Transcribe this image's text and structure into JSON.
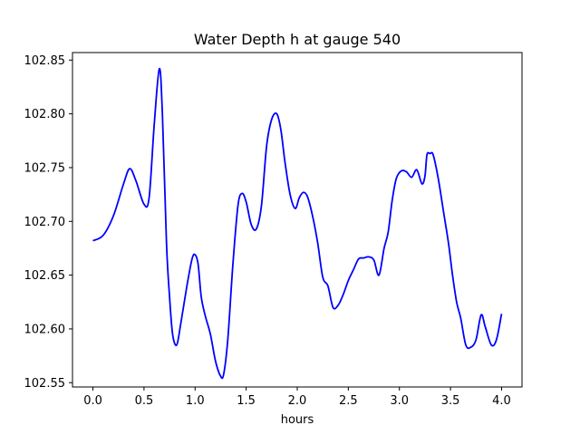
{
  "chart_data": {
    "type": "line",
    "title": "Water Depth h at gauge 540",
    "xlabel": "hours",
    "ylabel": "",
    "xlim": [
      -0.2,
      4.2
    ],
    "ylim": [
      102.546,
      102.857
    ],
    "xticks": [
      0.0,
      0.5,
      1.0,
      1.5,
      2.0,
      2.5,
      3.0,
      3.5,
      4.0
    ],
    "xtick_labels": [
      "0.0",
      "0.5",
      "1.0",
      "1.5",
      "2.0",
      "2.5",
      "3.0",
      "3.5",
      "4.0"
    ],
    "yticks": [
      102.55,
      102.6,
      102.65,
      102.7,
      102.75,
      102.8,
      102.85
    ],
    "ytick_labels": [
      "102.55",
      "102.60",
      "102.65",
      "102.70",
      "102.75",
      "102.80",
      "102.85"
    ],
    "grid": false,
    "series_color": "#0000ff",
    "series": [
      {
        "x": [
          0.0,
          0.1,
          0.2,
          0.3,
          0.36,
          0.42,
          0.5,
          0.55,
          0.6,
          0.65,
          0.68,
          0.72,
          0.75,
          0.78,
          0.82,
          0.86,
          0.92,
          0.97,
          1.0,
          1.03,
          1.06,
          1.1,
          1.15,
          1.2,
          1.25,
          1.28,
          1.32,
          1.37,
          1.42,
          1.46,
          1.5,
          1.55,
          1.6,
          1.65,
          1.7,
          1.75,
          1.8,
          1.84,
          1.88,
          1.93,
          1.98,
          2.02,
          2.06,
          2.1,
          2.15,
          2.2,
          2.25,
          2.3,
          2.35,
          2.4,
          2.45,
          2.5,
          2.55,
          2.6,
          2.65,
          2.7,
          2.75,
          2.8,
          2.85,
          2.89,
          2.93,
          2.97,
          3.02,
          3.07,
          3.12,
          3.17,
          3.22,
          3.25,
          3.27,
          3.3,
          3.33,
          3.38,
          3.43,
          3.48,
          3.52,
          3.56,
          3.6,
          3.65,
          3.7,
          3.75,
          3.8,
          3.84,
          3.9,
          3.95,
          4.0
        ],
        "y": [
          102.682,
          102.687,
          102.705,
          102.735,
          102.749,
          102.738,
          102.716,
          102.722,
          102.79,
          102.842,
          102.8,
          102.68,
          102.63,
          102.595,
          102.585,
          102.605,
          102.64,
          102.665,
          102.669,
          102.66,
          102.63,
          102.612,
          102.595,
          102.57,
          102.556,
          102.558,
          102.59,
          102.66,
          102.715,
          102.726,
          102.718,
          102.697,
          102.693,
          102.715,
          102.77,
          102.795,
          102.8,
          102.785,
          102.755,
          102.725,
          102.712,
          102.722,
          102.727,
          102.723,
          102.705,
          102.68,
          102.648,
          102.64,
          102.62,
          102.622,
          102.632,
          102.645,
          102.655,
          102.665,
          102.666,
          102.667,
          102.664,
          102.65,
          102.675,
          102.69,
          102.72,
          102.74,
          102.747,
          102.746,
          102.741,
          102.748,
          102.735,
          102.742,
          102.762,
          102.763,
          102.762,
          102.74,
          102.71,
          102.68,
          102.65,
          102.625,
          102.61,
          102.585,
          102.583,
          102.59,
          102.613,
          102.602,
          102.585,
          102.59,
          102.614
        ]
      }
    ]
  }
}
